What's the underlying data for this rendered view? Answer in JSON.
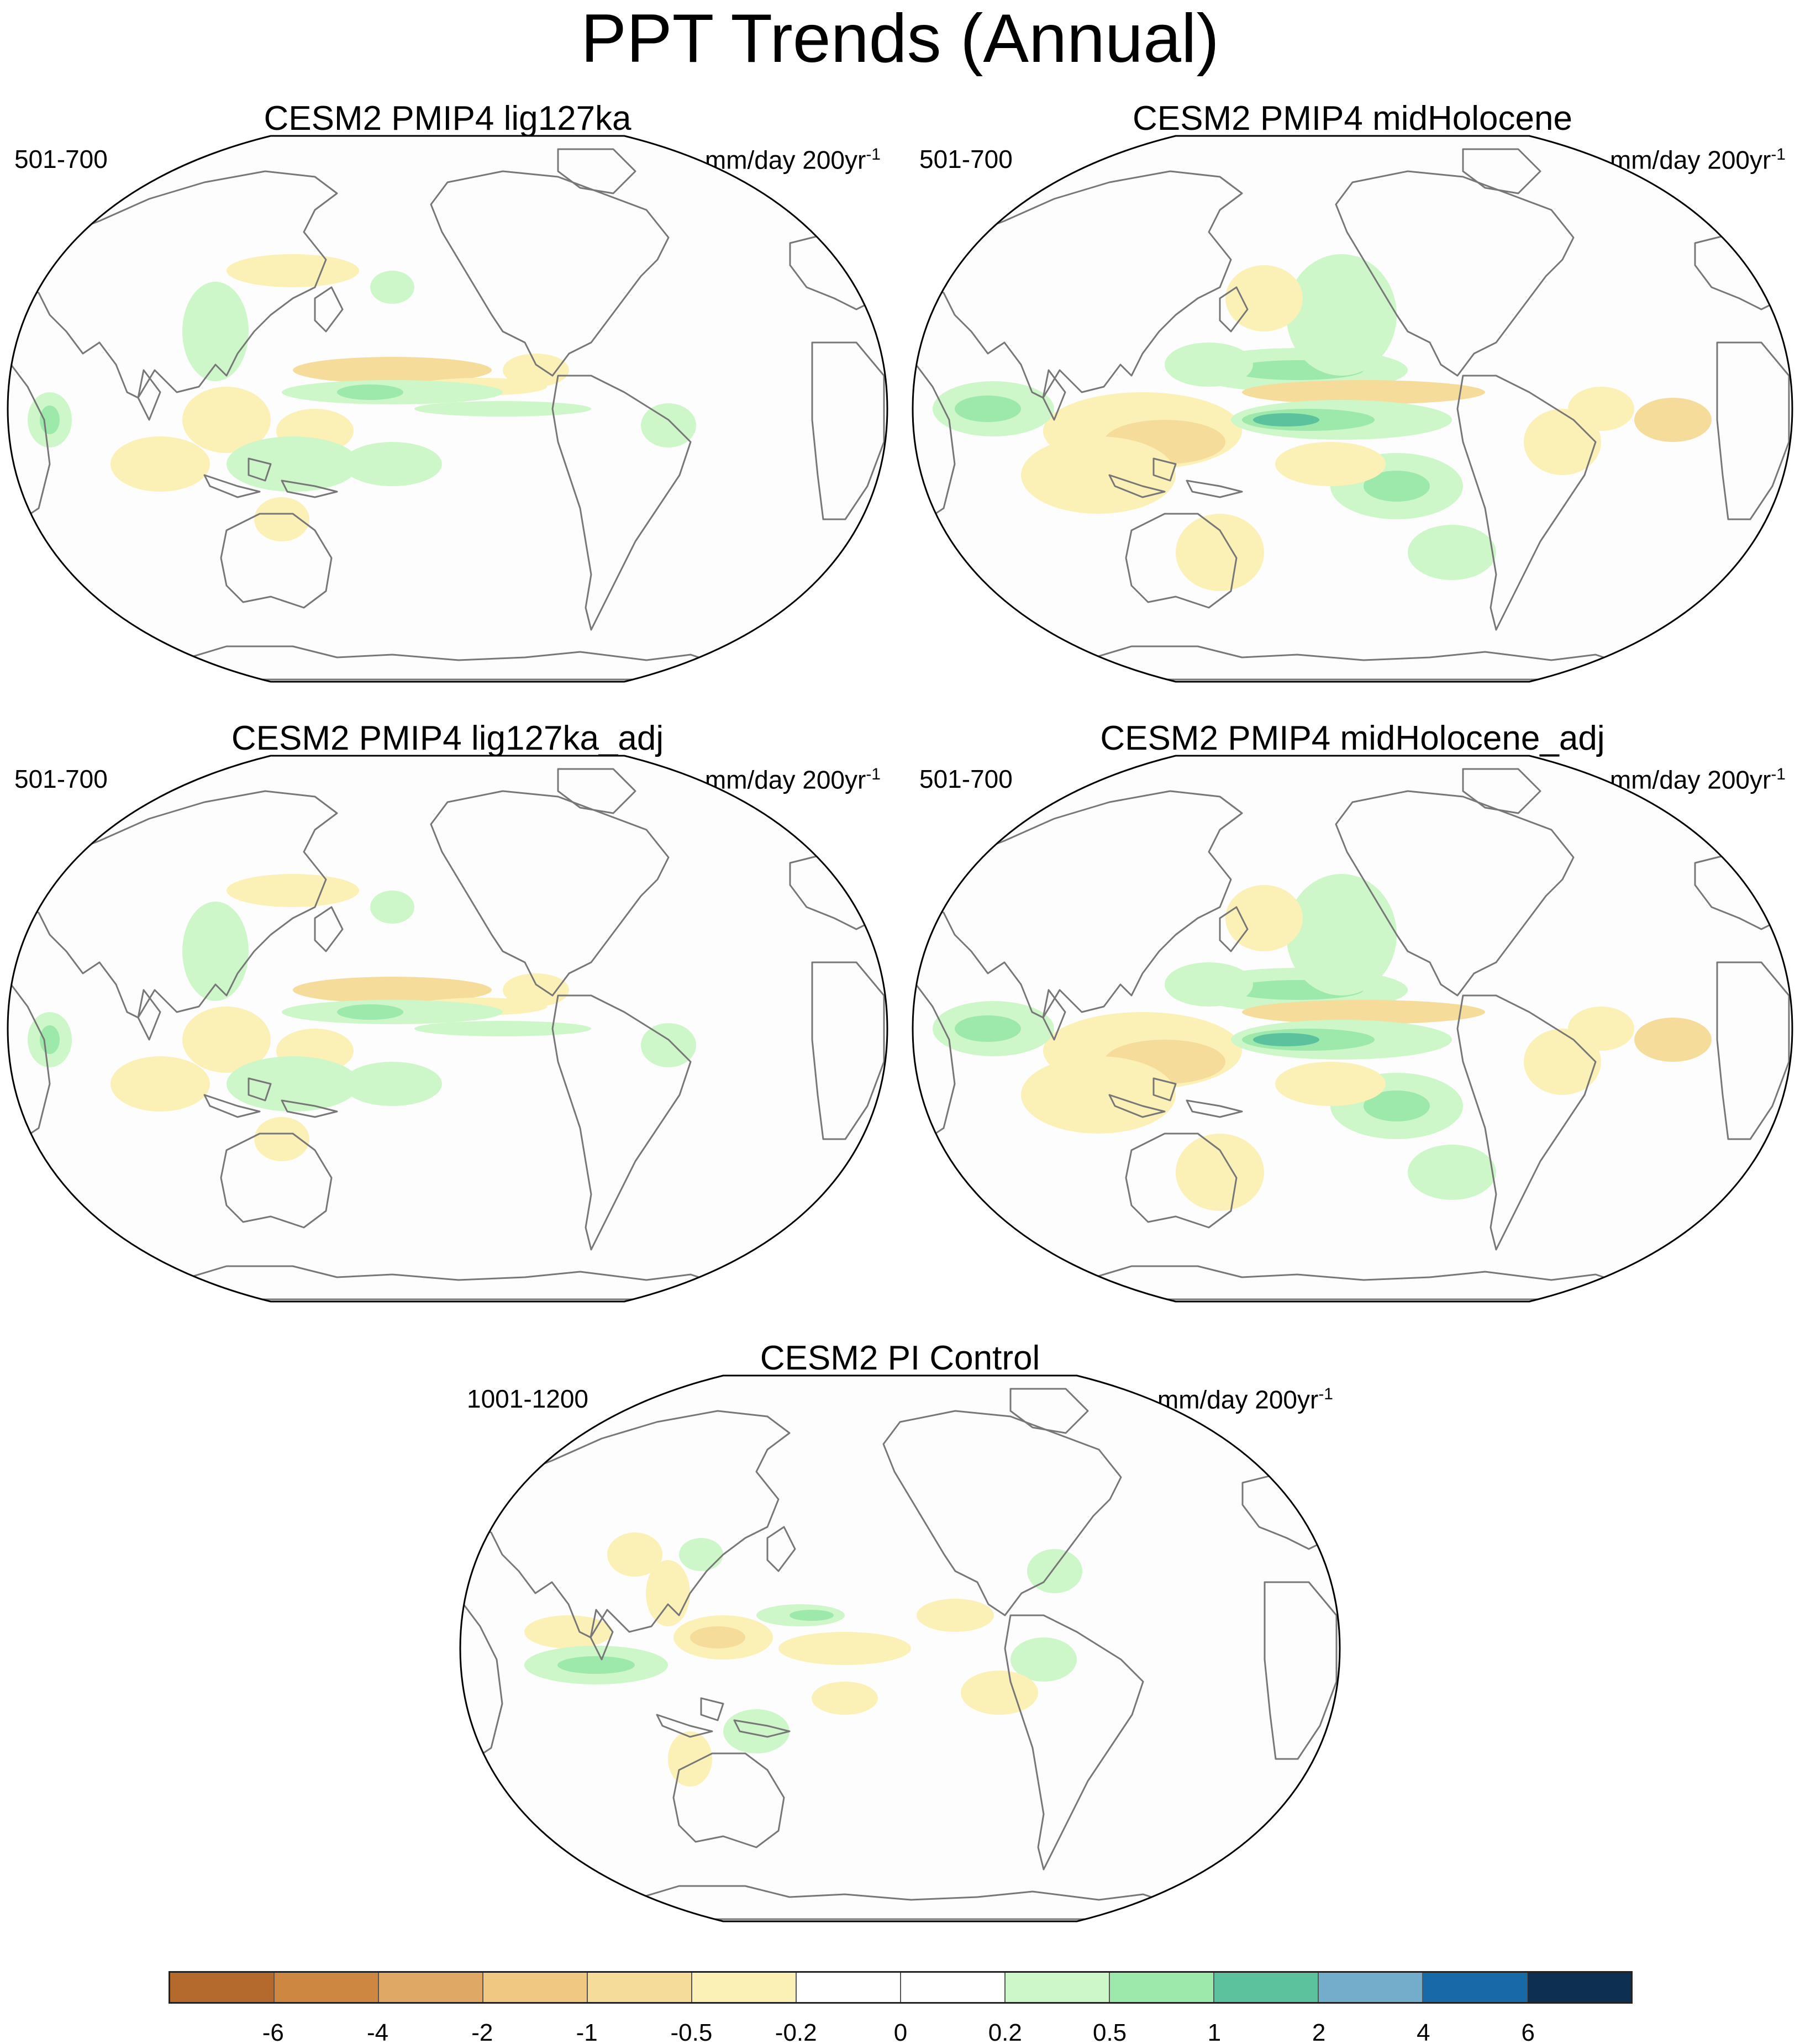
{
  "title": "PPT Trends (Annual)",
  "panels": [
    {
      "title": "CESM2 PMIP4 lig127ka",
      "period": "501-700",
      "units": "mm/day 200yr",
      "units_exp": "-1",
      "pattern": "lig"
    },
    {
      "title": "CESM2 PMIP4 midHolocene",
      "period": "501-700",
      "units": "mm/day 200yr",
      "units_exp": "-1",
      "pattern": "mh"
    },
    {
      "title": "CESM2 PMIP4 lig127ka_adj",
      "period": "501-700",
      "units": "mm/day 200yr",
      "units_exp": "-1",
      "pattern": "lig"
    },
    {
      "title": "CESM2 PMIP4 midHolocene_adj",
      "period": "501-700",
      "units": "mm/day 200yr",
      "units_exp": "-1",
      "pattern": "mh"
    },
    {
      "title": "CESM2 PI Control",
      "period": "1001-1200",
      "units": "mm/day 200yr",
      "units_exp": "-1",
      "pattern": "pi"
    }
  ],
  "colorbar": {
    "labels": [
      "-6",
      "-4",
      "-2",
      "-1",
      "-0.5",
      "-0.2",
      "0",
      "0.2",
      "0.5",
      "1",
      "2",
      "4",
      "6"
    ],
    "colors": [
      "#b46a2c",
      "#cd8741",
      "#e0a865",
      "#f1c882",
      "#f5dc9a",
      "#fbf0b6",
      "#ffffff",
      "#ffffff",
      "#cdf7c8",
      "#9de8ab",
      "#5cc19d",
      "#74accb",
      "#1769a8",
      "#0c2f52"
    ]
  },
  "colors": {
    "coastline": "#777777",
    "map_border": "#000000"
  }
}
